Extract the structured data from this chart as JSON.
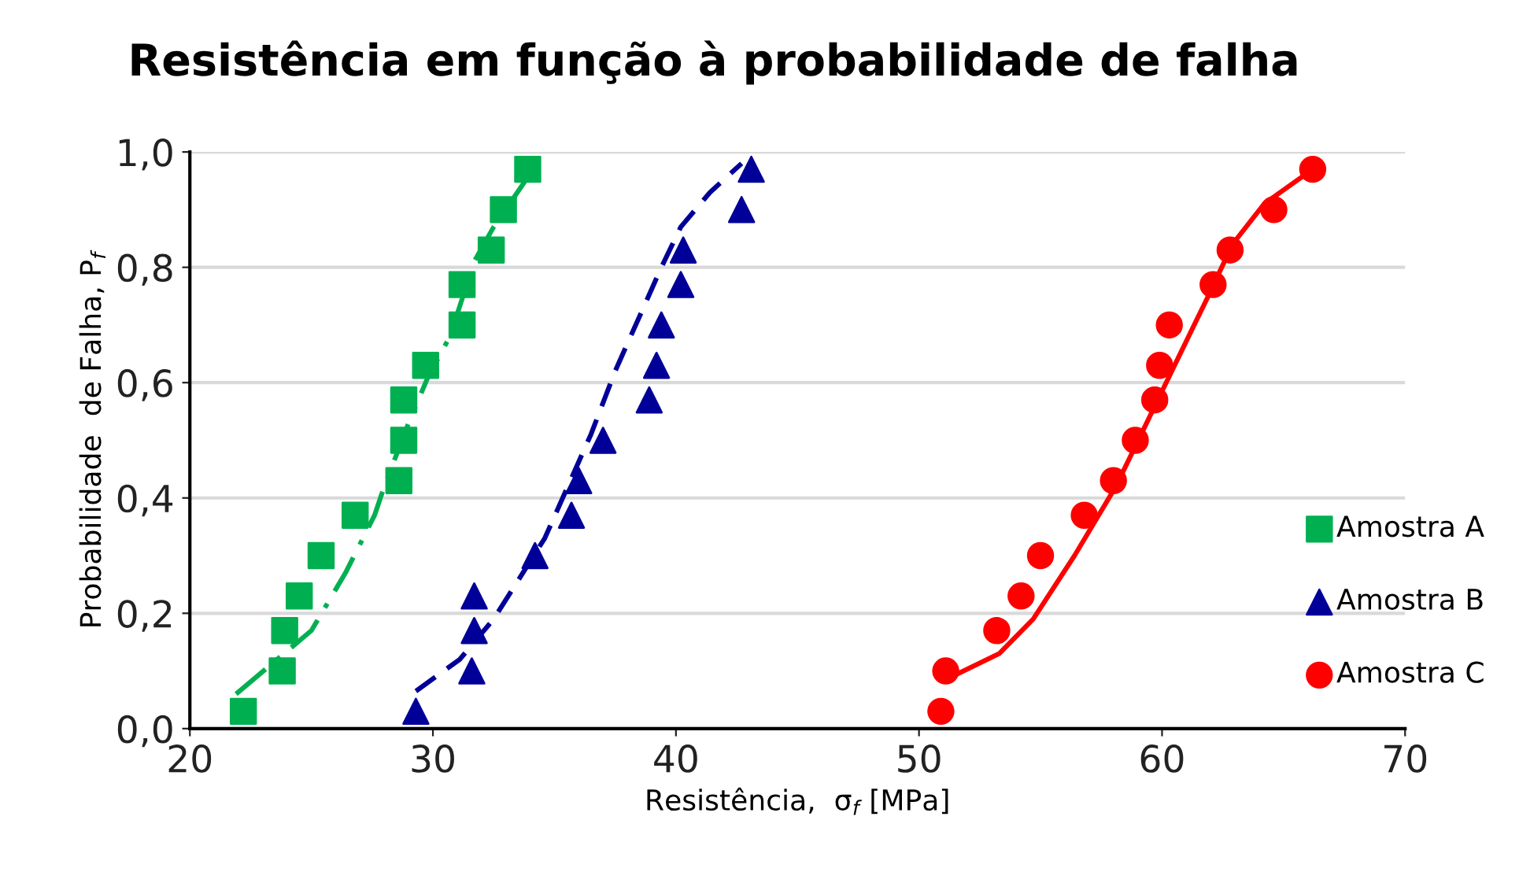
{
  "chart_data": {
    "type": "scatter",
    "title": "Resistência em função à probabilidade de falha",
    "xlabel": "Resistência,  σ$_{f}$ [MPa]",
    "ylabel": "Probabilidade  de Falha, P$_{f}$",
    "xlim": [
      20,
      70
    ],
    "xticks": [
      20,
      30,
      40,
      50,
      60,
      70
    ],
    "ylim": [
      0,
      1
    ],
    "yticks": [
      {
        "value": 0,
        "label": "0,0"
      },
      {
        "value": 0.2,
        "label": "0,2"
      },
      {
        "value": 0.4,
        "label": "0,4"
      },
      {
        "value": 0.6,
        "label": "0,6"
      },
      {
        "value": 0.8,
        "label": "0,8"
      },
      {
        "value": 1,
        "label": "1,0"
      }
    ],
    "grid": "y",
    "legend": "right",
    "series": [
      {
        "name": "Amostra A",
        "marker": "square",
        "color": "#00b050",
        "x": [
          22.2,
          23.8,
          23.9,
          24.5,
          25.4,
          26.8,
          28.6,
          28.8,
          28.8,
          29.7,
          31.2,
          31.2,
          32.4,
          32.9,
          33.9
        ],
        "values": [
          0.03,
          0.1,
          0.17,
          0.23,
          0.3,
          0.37,
          0.43,
          0.5,
          0.57,
          0.63,
          0.7,
          0.77,
          0.83,
          0.9,
          0.97
        ]
      },
      {
        "name": "Amostra B",
        "marker": "triangle",
        "color": "#000099",
        "x": [
          29.3,
          31.6,
          31.7,
          31.7,
          34.2,
          35.7,
          36.0,
          37.0,
          38.9,
          39.2,
          39.4,
          40.2,
          40.3,
          42.7,
          43.1
        ],
        "values": [
          0.03,
          0.1,
          0.17,
          0.23,
          0.3,
          0.37,
          0.43,
          0.5,
          0.57,
          0.63,
          0.7,
          0.77,
          0.83,
          0.9,
          0.97
        ]
      },
      {
        "name": "Amostra C",
        "marker": "circle",
        "color": "#ff0000",
        "x": [
          50.9,
          51.1,
          53.2,
          54.2,
          55.0,
          56.8,
          58.0,
          58.9,
          59.7,
          59.9,
          60.3,
          62.1,
          62.8,
          64.6,
          66.2
        ],
        "values": [
          0.03,
          0.1,
          0.17,
          0.23,
          0.3,
          0.37,
          0.43,
          0.5,
          0.57,
          0.63,
          0.7,
          0.77,
          0.83,
          0.9,
          0.97
        ]
      },
      {
        "type": "line",
        "line_style": "dashdot",
        "color": "#00b050",
        "x": [
          21.9,
          25.0,
          26.4,
          27.6,
          28.0,
          29.0,
          29.8,
          30.7,
          31.7,
          32.5,
          33.8
        ],
        "values": [
          0.06,
          0.17,
          0.27,
          0.37,
          0.42,
          0.53,
          0.61,
          0.68,
          0.81,
          0.87,
          0.95
        ]
      },
      {
        "type": "line",
        "line_style": "dashed",
        "color": "#000099",
        "x": [
          29.3,
          31.1,
          32.5,
          34.6,
          36.5,
          37.5,
          39.4,
          40.2,
          41.4,
          42.7
        ],
        "values": [
          0.065,
          0.12,
          0.19,
          0.33,
          0.51,
          0.62,
          0.8,
          0.87,
          0.93,
          0.98
        ]
      },
      {
        "type": "line",
        "line_style": "solid",
        "color": "#ff0000",
        "x": [
          51.1,
          53.3,
          54.7,
          56.4,
          58.1,
          60.4,
          61.9,
          62.9,
          64.2,
          66.2
        ],
        "values": [
          0.085,
          0.13,
          0.19,
          0.3,
          0.42,
          0.62,
          0.75,
          0.84,
          0.91,
          0.97
        ]
      }
    ]
  }
}
